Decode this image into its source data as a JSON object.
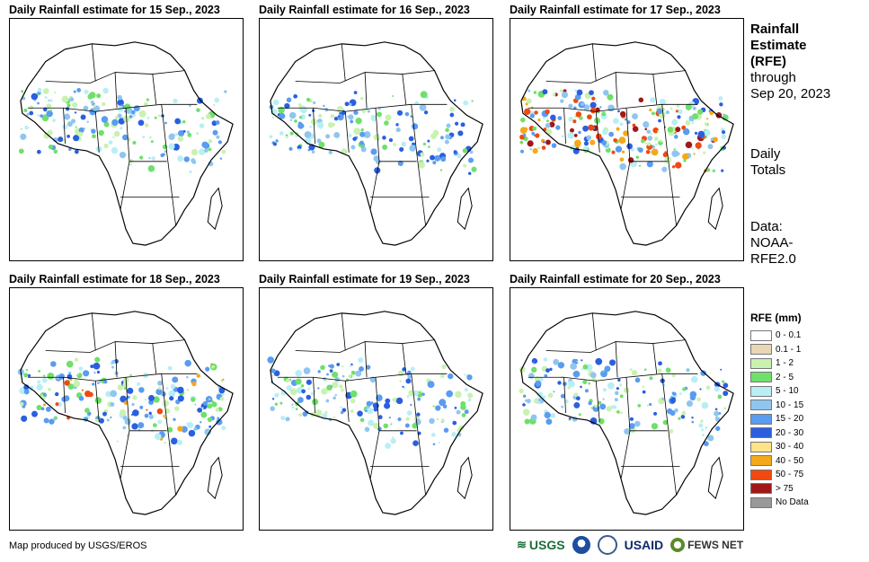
{
  "panels": [
    {
      "title": "Daily Rainfall estimate for 15 Sep., 2023",
      "intensity": 1
    },
    {
      "title": "Daily Rainfall estimate for 16 Sep., 2023",
      "intensity": 1
    },
    {
      "title": "Daily Rainfall estimate for 17 Sep., 2023",
      "intensity": 3
    },
    {
      "title": "Daily Rainfall estimate for 18 Sep., 2023",
      "intensity": 2
    },
    {
      "title": "Daily Rainfall estimate for 19 Sep., 2023",
      "intensity": 1
    },
    {
      "title": "Daily Rainfall estimate for 20 Sep., 2023",
      "intensity": 1
    }
  ],
  "side": {
    "title_line1": "Rainfall",
    "title_line2": "Estimate",
    "title_line3": "(RFE)",
    "through": "through",
    "date": "Sep 20, 2023",
    "daily": "Daily",
    "totals": "Totals",
    "data_label": "Data:",
    "source1": "NOAA-",
    "source2": "RFE2.0"
  },
  "legend": {
    "title": "RFE (mm)",
    "items": [
      {
        "label": "0 - 0.1",
        "color": "#ffffff"
      },
      {
        "label": "0.1 - 1",
        "color": "#e8d6b5"
      },
      {
        "label": "1 - 2",
        "color": "#c9f2b0"
      },
      {
        "label": "2 - 5",
        "color": "#6fe06a"
      },
      {
        "label": "5 - 10",
        "color": "#b9eef5"
      },
      {
        "label": "10 - 15",
        "color": "#8fc6f0"
      },
      {
        "label": "15 - 20",
        "color": "#5a9cf0"
      },
      {
        "label": "20 - 30",
        "color": "#2a5fe0"
      },
      {
        "label": "30 - 40",
        "color": "#fde38a"
      },
      {
        "label": "40 - 50",
        "color": "#f5a81a"
      },
      {
        "label": "50 - 75",
        "color": "#f04a10"
      },
      {
        "label": "> 75",
        "color": "#a01818"
      },
      {
        "label": "No Data",
        "color": "#999999"
      }
    ]
  },
  "footer": "Map produced by USGS/EROS",
  "logos": {
    "usgs": "USGS",
    "noaa": "NOAA",
    "usaid": "USAID",
    "fews": "FEWS NET"
  }
}
